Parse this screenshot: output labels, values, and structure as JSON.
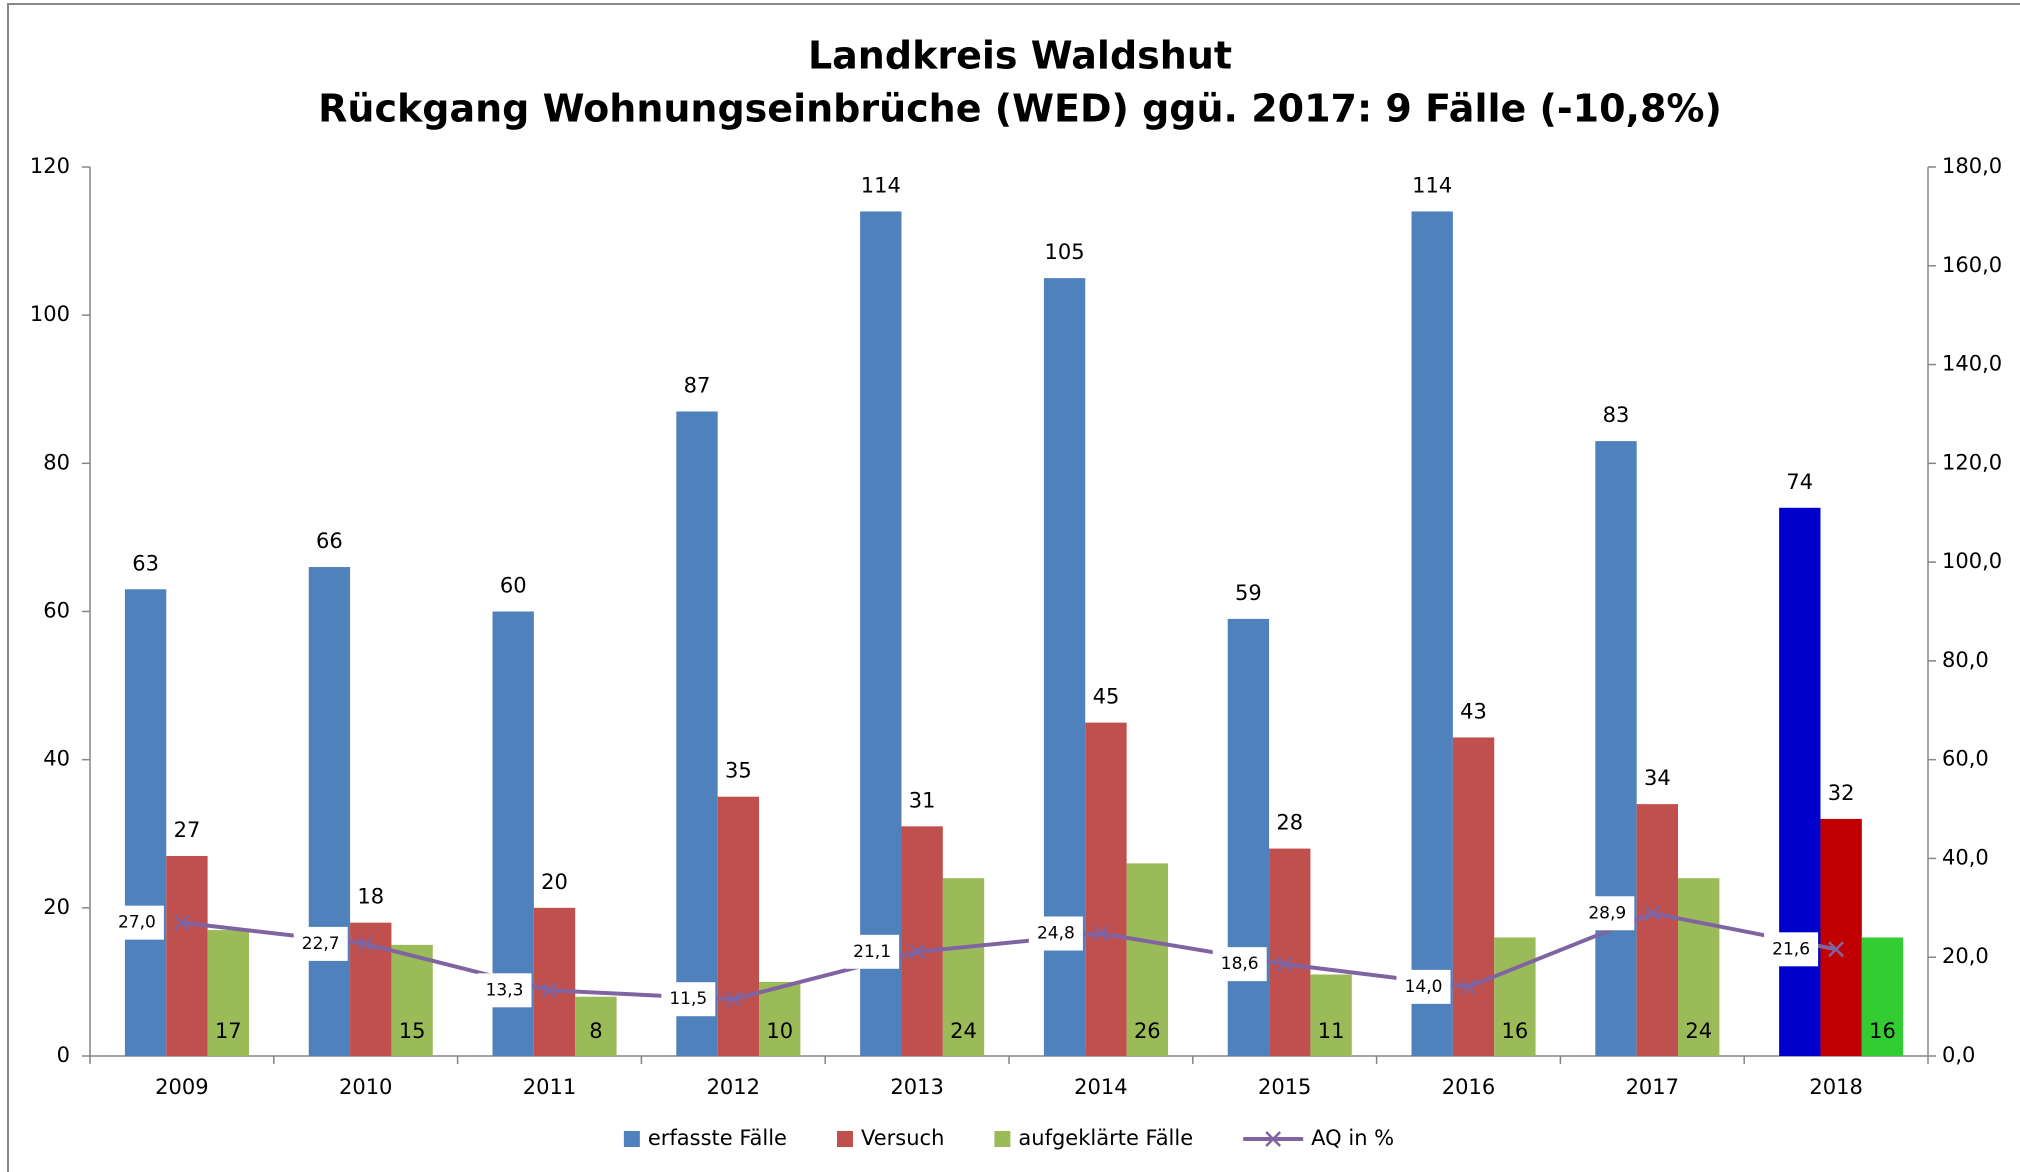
{
  "chart_data": {
    "type": "bar-line",
    "title": "Landkreis Waldshut",
    "subtitle": "Rückgang Wohnungseinbrüche (WED) ggü. 2017: 9 Fälle (-10,8%)",
    "categories": [
      "2009",
      "2010",
      "2011",
      "2012",
      "2013",
      "2014",
      "2015",
      "2016",
      "2017",
      "2018"
    ],
    "series": [
      {
        "name": "erfasste Fälle",
        "type": "bar",
        "color": "#4f81bd",
        "colors": [
          "#4f81bd",
          "#4f81bd",
          "#4f81bd",
          "#4f81bd",
          "#4f81bd",
          "#4f81bd",
          "#4f81bd",
          "#4f81bd",
          "#4f81bd",
          "#0000cc"
        ],
        "values": [
          63,
          66,
          60,
          87,
          114,
          105,
          59,
          114,
          83,
          74
        ]
      },
      {
        "name": "Versuch",
        "type": "bar",
        "color": "#c0504d",
        "colors": [
          "#c0504d",
          "#c0504d",
          "#c0504d",
          "#c0504d",
          "#c0504d",
          "#c0504d",
          "#c0504d",
          "#c0504d",
          "#c0504d",
          "#c00000"
        ],
        "values": [
          27,
          18,
          20,
          35,
          31,
          45,
          28,
          43,
          34,
          32
        ]
      },
      {
        "name": "aufgeklärte Fälle",
        "type": "bar",
        "color": "#9bbb59",
        "colors": [
          "#9bbb59",
          "#9bbb59",
          "#9bbb59",
          "#9bbb59",
          "#9bbb59",
          "#9bbb59",
          "#9bbb59",
          "#9bbb59",
          "#9bbb59",
          "#33cc33"
        ],
        "values": [
          17,
          15,
          8,
          10,
          24,
          26,
          11,
          16,
          24,
          16
        ]
      },
      {
        "name": "AQ in %",
        "type": "line",
        "axis": "y2",
        "color": "#8064a2",
        "values": [
          27.0,
          22.7,
          13.3,
          11.5,
          21.1,
          24.8,
          18.6,
          14.0,
          28.9,
          21.6
        ],
        "value_labels": [
          "27,0",
          "22,7",
          "13,3",
          "11,5",
          "21,1",
          "24,8",
          "18,6",
          "14,0",
          "28,9",
          "21,6"
        ]
      }
    ],
    "ylim": [
      0,
      120
    ],
    "yticks": [
      0,
      20,
      40,
      60,
      80,
      100,
      120
    ],
    "y2lim": [
      0,
      180
    ],
    "y2ticks": [
      {
        "value": 0,
        "label": "0,0"
      },
      {
        "value": 20,
        "label": "20,0"
      },
      {
        "value": 40,
        "label": "40,0"
      },
      {
        "value": 60,
        "label": "60,0"
      },
      {
        "value": 80,
        "label": "80,0"
      },
      {
        "value": 100,
        "label": "100,0"
      },
      {
        "value": 120,
        "label": "120,0"
      },
      {
        "value": 140,
        "label": "140,0"
      },
      {
        "value": 160,
        "label": "160,0"
      },
      {
        "value": 180,
        "label": "180,0"
      }
    ],
    "legend": "bottom",
    "grid": false
  }
}
